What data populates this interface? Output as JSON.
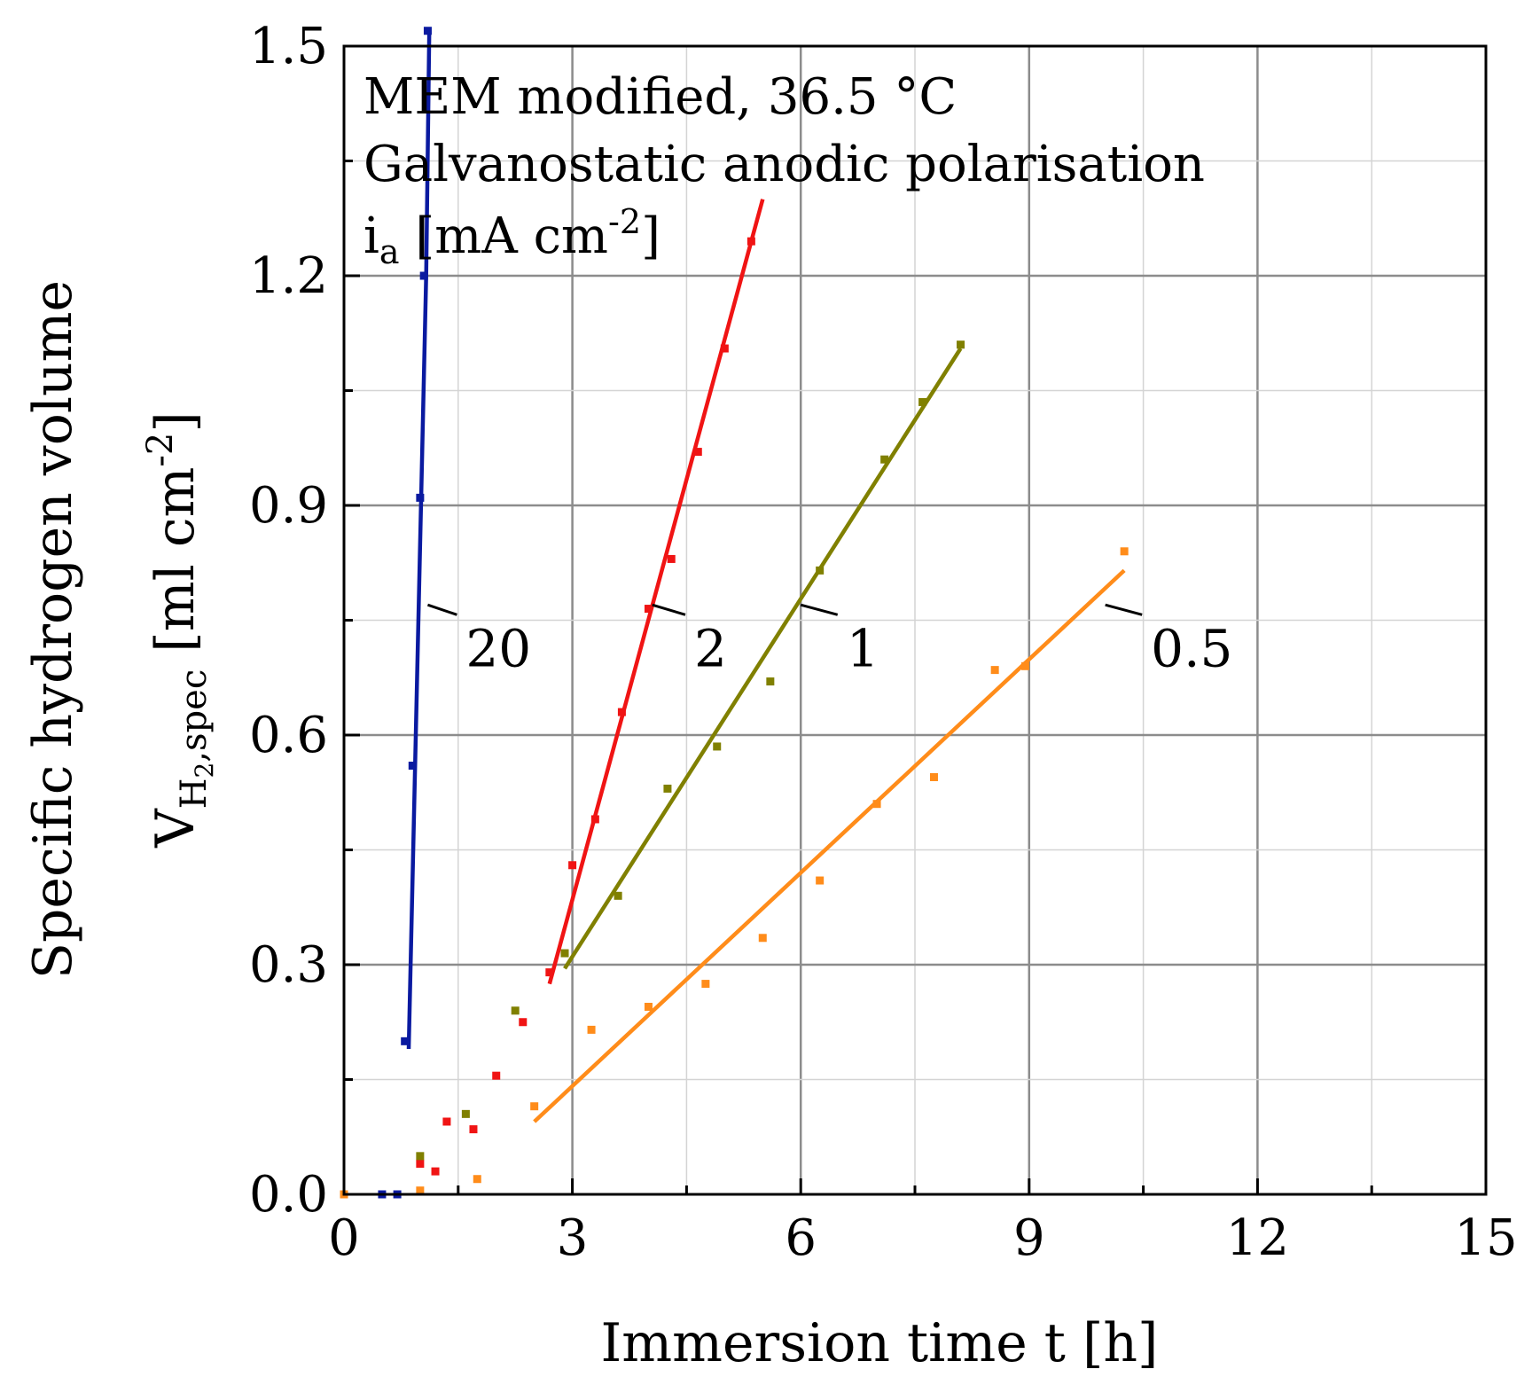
{
  "chart_data": {
    "type": "scatter",
    "title": "",
    "xlabel": "Immersion time t [h]",
    "ylabel": {
      "line1": "Specific hydrogen volume",
      "symbol": "V",
      "sub_main": "H",
      "sub_num": "2",
      "sub_tail": ",spec",
      "unit": " [ml cm",
      "unit_sup": "-2",
      "unit_close": "]"
    },
    "xlim": [
      0,
      15
    ],
    "ylim": [
      0,
      1.5
    ],
    "x_ticks": [
      0,
      3,
      6,
      9,
      12,
      15
    ],
    "x_tick_labels": [
      "0",
      "3",
      "6",
      "9",
      "12",
      "15"
    ],
    "y_ticks": [
      0,
      0.3,
      0.6,
      0.9,
      1.2,
      1.5
    ],
    "y_tick_labels": [
      "0.0",
      "0.3",
      "0.6",
      "0.9",
      "1.2",
      "1.5"
    ],
    "grid": true,
    "annotations": {
      "line1": "MEM modified, 36.5 °C",
      "line2": "Galvanostatic anodic polarisation",
      "line3_main": "i",
      "line3_sub": "a",
      "line3_unit": " [mA cm",
      "line3_sup": "-2",
      "line3_close": "]"
    },
    "series": [
      {
        "name": "20",
        "color": "#0a1aa0",
        "points": [
          [
            0.5,
            0.0
          ],
          [
            0.7,
            0.0
          ],
          [
            0.8,
            0.2
          ],
          [
            0.9,
            0.56
          ],
          [
            1.0,
            0.91
          ],
          [
            1.05,
            1.2
          ],
          [
            1.1,
            1.52
          ]
        ],
        "fit": [
          [
            0.85,
            0.19
          ],
          [
            1.08,
            1.2
          ],
          [
            1.12,
            1.52
          ]
        ],
        "label": "20",
        "label_at": [
          1.6,
          0.69
        ],
        "leader_from": [
          1.1,
          0.77
        ]
      },
      {
        "name": "2",
        "color": "#f01414",
        "points": [
          [
            1.0,
            0.04
          ],
          [
            1.2,
            0.03
          ],
          [
            1.35,
            0.095
          ],
          [
            1.7,
            0.085
          ],
          [
            2.0,
            0.155
          ],
          [
            2.35,
            0.225
          ],
          [
            2.7,
            0.29
          ],
          [
            3.0,
            0.43
          ],
          [
            3.3,
            0.49
          ],
          [
            3.65,
            0.63
          ],
          [
            4.0,
            0.765
          ],
          [
            4.3,
            0.83
          ],
          [
            4.65,
            0.97
          ],
          [
            5.0,
            1.105
          ],
          [
            5.35,
            1.245
          ]
        ],
        "fit": [
          [
            2.7,
            0.275
          ],
          [
            5.5,
            1.3
          ]
        ],
        "label": "2",
        "label_at": [
          4.6,
          0.69
        ],
        "leader_from": [
          4.05,
          0.77
        ]
      },
      {
        "name": "1",
        "color": "#808000",
        "points": [
          [
            1.0,
            0.05
          ],
          [
            1.6,
            0.105
          ],
          [
            2.25,
            0.24
          ],
          [
            2.9,
            0.315
          ],
          [
            3.6,
            0.39
          ],
          [
            4.25,
            0.53
          ],
          [
            4.9,
            0.585
          ],
          [
            5.6,
            0.67
          ],
          [
            6.25,
            0.815
          ],
          [
            7.1,
            0.96
          ],
          [
            7.6,
            1.035
          ],
          [
            8.1,
            1.11
          ]
        ],
        "fit": [
          [
            2.9,
            0.295
          ],
          [
            8.1,
            1.105
          ]
        ],
        "label": "1",
        "label_at": [
          6.6,
          0.69
        ],
        "leader_from": [
          6.0,
          0.77
        ]
      },
      {
        "name": "0.5",
        "color": "#ff8c1a",
        "points": [
          [
            0.0,
            0.0
          ],
          [
            1.0,
            0.005
          ],
          [
            1.75,
            0.02
          ],
          [
            2.5,
            0.115
          ],
          [
            3.25,
            0.215
          ],
          [
            4.0,
            0.245
          ],
          [
            4.75,
            0.275
          ],
          [
            5.5,
            0.335
          ],
          [
            6.25,
            0.41
          ],
          [
            7.0,
            0.51
          ],
          [
            7.75,
            0.545
          ],
          [
            8.55,
            0.685
          ],
          [
            8.95,
            0.69
          ],
          [
            10.25,
            0.84
          ]
        ],
        "fit": [
          [
            2.5,
            0.095
          ],
          [
            10.25,
            0.815
          ]
        ],
        "label": "0.5",
        "label_at": [
          10.6,
          0.69
        ],
        "leader_from": [
          10.0,
          0.77
        ]
      }
    ]
  }
}
